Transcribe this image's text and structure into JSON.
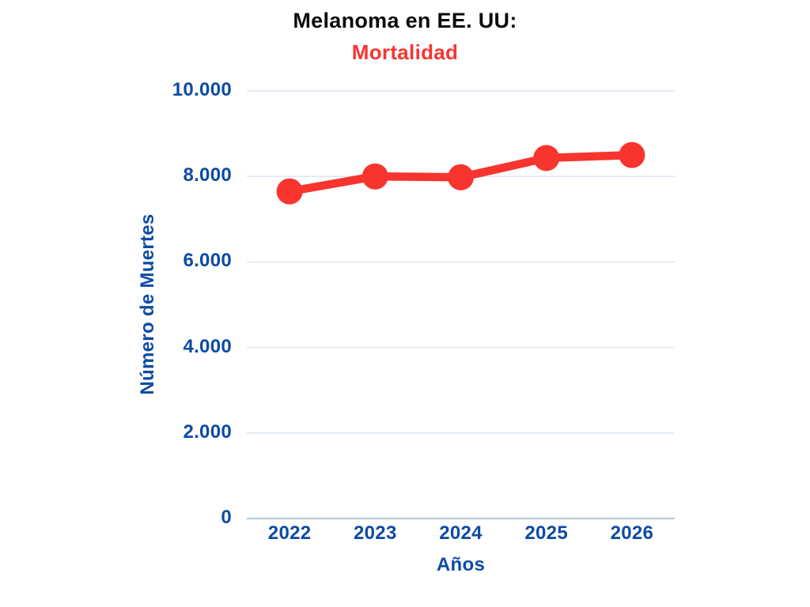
{
  "chart_data": {
    "type": "line",
    "title": "Melanoma en EE. UU:",
    "subtitle": "Mortalidad",
    "xlabel": "Años",
    "ylabel": "Número de Muertes",
    "categories": [
      "2022",
      "2023",
      "2024",
      "2025",
      "2026"
    ],
    "series": [
      {
        "name": "Mortalidad",
        "values": [
          7650,
          8000,
          7980,
          8430,
          8500
        ]
      }
    ],
    "ylim": [
      0,
      10000
    ],
    "yticks": [
      0,
      2000,
      4000,
      6000,
      8000,
      10000
    ],
    "ytick_labels": [
      "0",
      "2.000",
      "4.000",
      "6.000",
      "8.000",
      "10.000"
    ],
    "grid": true,
    "legend": "none",
    "marker_style": "filled-circle",
    "colors": {
      "line": "#F8342F",
      "marker": "#F8342F",
      "title": "#0B0B0B",
      "subtitle": "#F8342F",
      "axis_text": "#0C4BA4",
      "gridline": "#DCE7F1",
      "axis_line": "#BCCEDD",
      "background": "#FFFFFF"
    }
  }
}
